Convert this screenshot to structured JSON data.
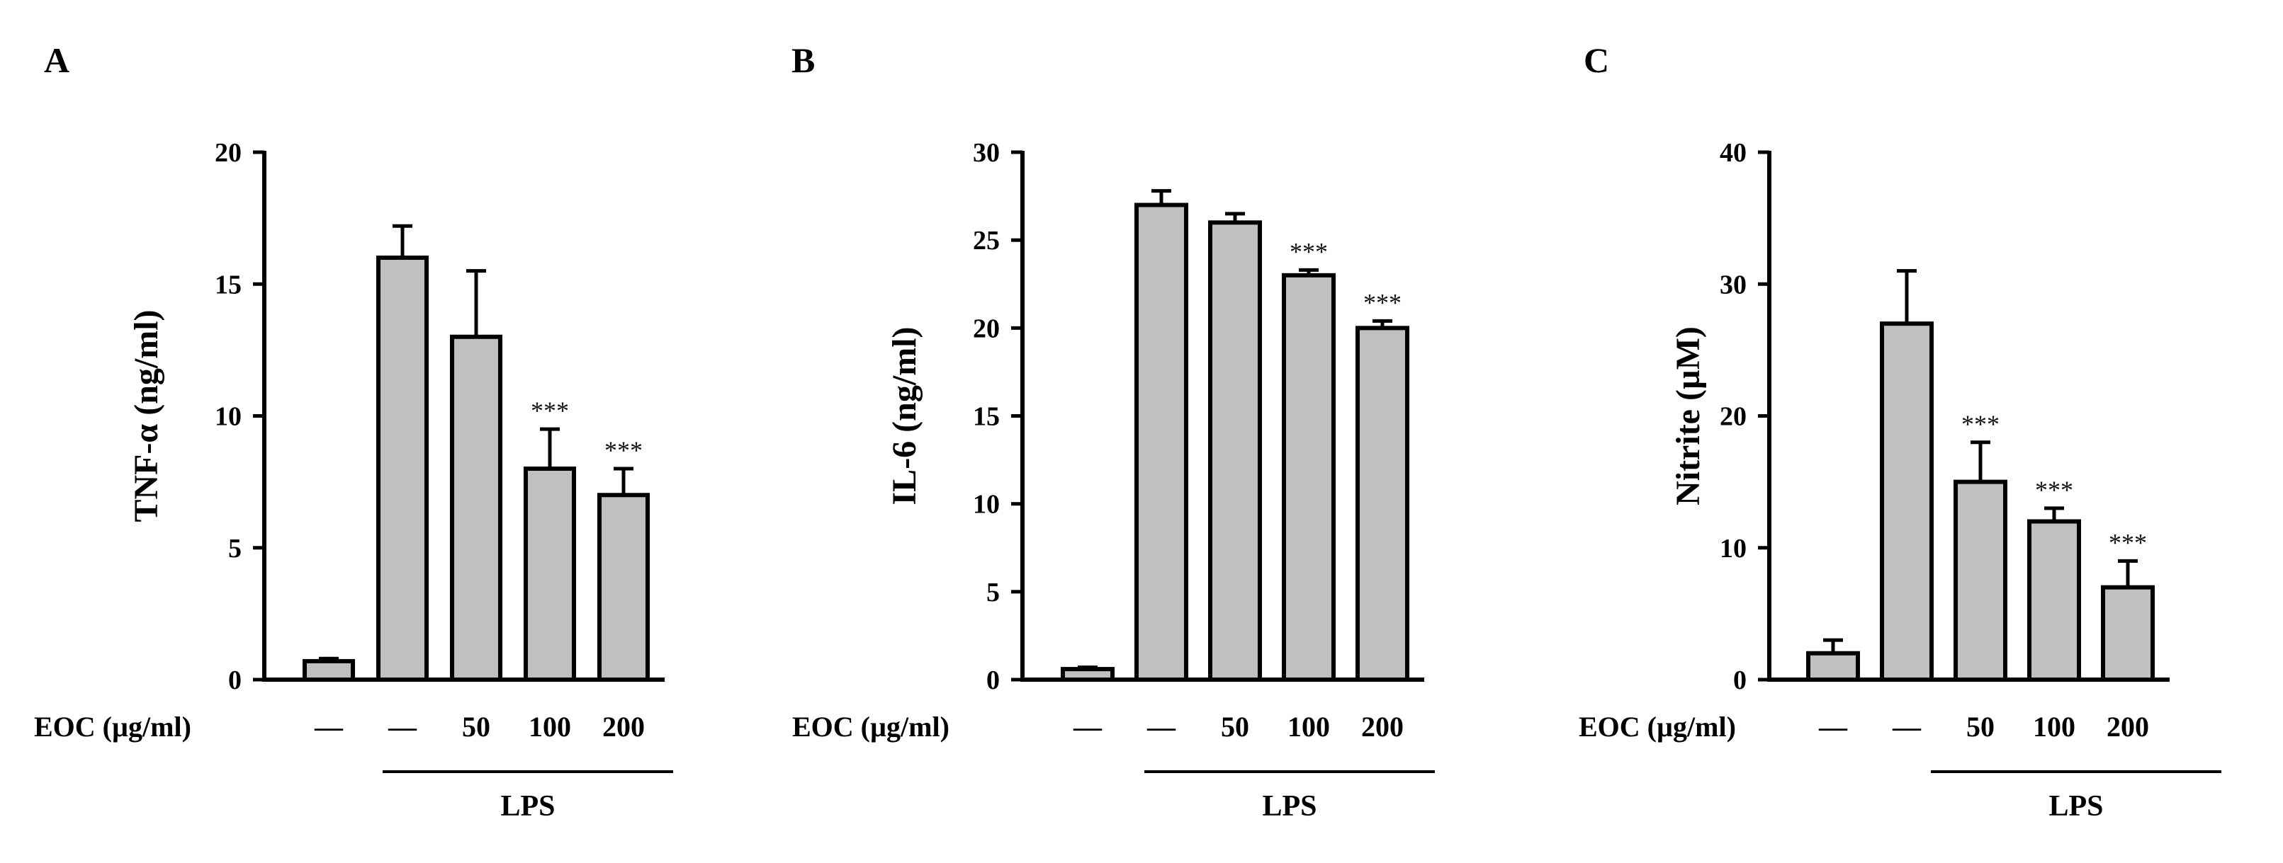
{
  "chart_data": [
    {
      "type": "bar",
      "panel": "A",
      "ylabel": "TNF-α (ng/ml)",
      "xlabel": "EOC (µg/ml)",
      "categories": [
        "—",
        "—",
        "50",
        "100",
        "200"
      ],
      "values": [
        0.7,
        16,
        13,
        8,
        7
      ],
      "errors": [
        0.1,
        1.2,
        2.5,
        1.5,
        1.0
      ],
      "significance": [
        "",
        "",
        "",
        "***",
        "***"
      ],
      "ylim": [
        0,
        20
      ],
      "yticks": [
        0,
        5,
        10,
        15,
        20
      ],
      "group_label": "LPS",
      "group_range": [
        1,
        4
      ],
      "bar_color": "#c0c0c0",
      "grid": false
    },
    {
      "type": "bar",
      "panel": "B",
      "ylabel": "IL-6 (ng/ml)",
      "xlabel": "EOC (µg/ml)",
      "categories": [
        "—",
        "—",
        "50",
        "100",
        "200"
      ],
      "values": [
        0.6,
        27,
        26,
        23,
        20
      ],
      "errors": [
        0.1,
        0.8,
        0.5,
        0.3,
        0.4
      ],
      "significance": [
        "",
        "",
        "",
        "***",
        "***"
      ],
      "ylim": [
        0,
        30
      ],
      "yticks": [
        0,
        5,
        10,
        15,
        20,
        25,
        30
      ],
      "group_label": "LPS",
      "group_range": [
        1,
        4
      ],
      "bar_color": "#c0c0c0",
      "grid": false
    },
    {
      "type": "bar",
      "panel": "C",
      "ylabel": "Nitrite (µM)",
      "xlabel": "EOC (µg/ml)",
      "categories": [
        "—",
        "—",
        "50",
        "100",
        "200"
      ],
      "values": [
        2,
        27,
        15,
        12,
        7
      ],
      "errors": [
        1,
        4,
        3,
        1,
        2
      ],
      "significance": [
        "",
        "",
        "***",
        "***",
        "***"
      ],
      "ylim": [
        0,
        40
      ],
      "yticks": [
        0,
        10,
        20,
        30,
        40
      ],
      "group_label": "LPS",
      "group_range": [
        1,
        4
      ],
      "bar_color": "#c0c0c0",
      "grid": false
    }
  ]
}
